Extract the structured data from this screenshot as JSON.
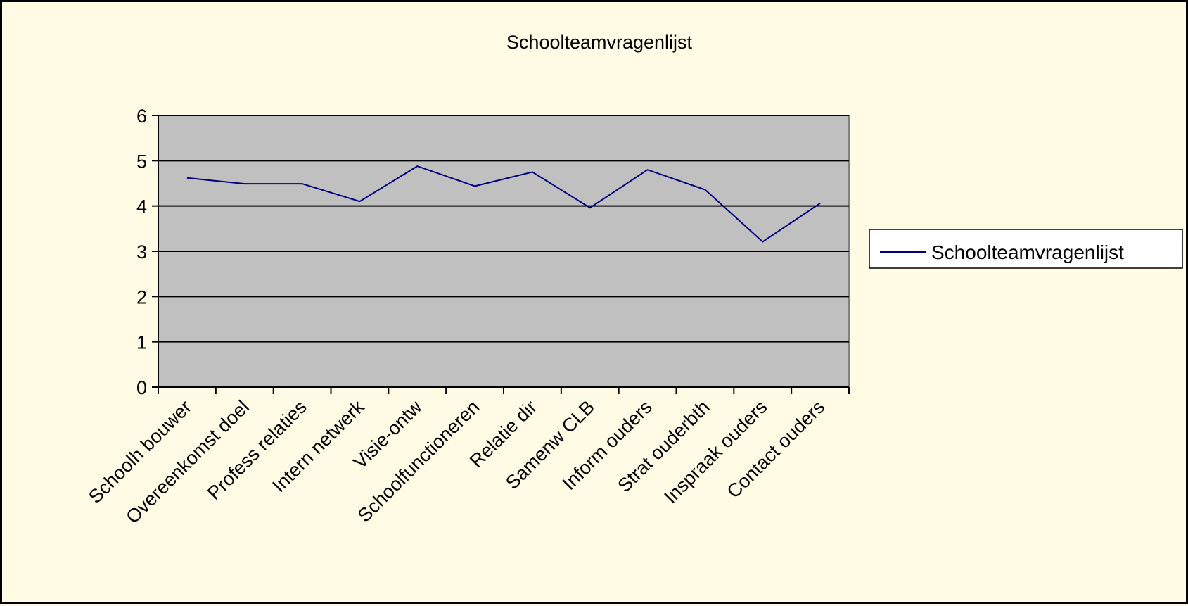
{
  "chart_data": {
    "type": "line",
    "title": "Schoolteamvragenlijst",
    "xlabel": "",
    "ylabel": "",
    "categories": [
      "Schoolh bouwer",
      "Overeenkomst doel",
      "Profess relaties",
      "Intern netwerk",
      "Visie-ontw",
      "Schoolfunctioneren",
      "Relatie dir",
      "Samenw CLB",
      "Inform ouders",
      "Strat ouderbth",
      "Inspraak ouders",
      "Contact ouders"
    ],
    "series": [
      {
        "name": "Schoolteamvragenlijst",
        "values": [
          4.62,
          4.49,
          4.49,
          4.1,
          4.88,
          4.44,
          4.75,
          3.96,
          4.8,
          4.36,
          3.21,
          4.06
        ],
        "color": "#000080"
      }
    ],
    "ylim": [
      0,
      6
    ],
    "yticks": [
      "0",
      "1",
      "2",
      "3",
      "4",
      "5",
      "6"
    ],
    "grid": true,
    "plot_background": "#c0c0c0",
    "legend": "right"
  }
}
